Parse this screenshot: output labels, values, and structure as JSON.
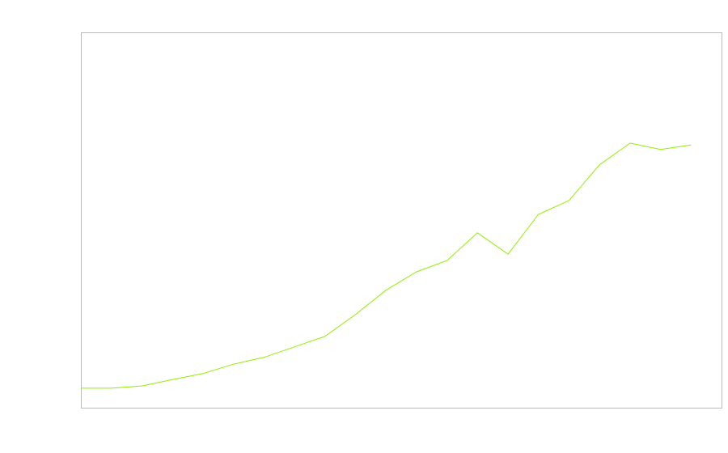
{
  "chart_data": {
    "type": "line",
    "title": "",
    "xlabel": "",
    "ylabel": "",
    "x": [
      0,
      1,
      2,
      3,
      4,
      5,
      6,
      7,
      8,
      9,
      10,
      11,
      12,
      13,
      14,
      15,
      16,
      17,
      18,
      19,
      20
    ],
    "series": [
      {
        "values": [
          5.2,
          5.2,
          5.8,
          7.5,
          9.1,
          11.6,
          13.4,
          16.2,
          19.0,
          24.8,
          31.3,
          36.2,
          39.2,
          46.6,
          40.9,
          51.5,
          55.2,
          64.7,
          70.5,
          68.8,
          70.0
        ]
      }
    ],
    "xlim": [
      0,
      21
    ],
    "ylim": [
      0,
      100
    ],
    "grid": false,
    "legend": "none",
    "colors": {
      "line": "#90ee02",
      "frame": "#bbbbbb"
    }
  }
}
